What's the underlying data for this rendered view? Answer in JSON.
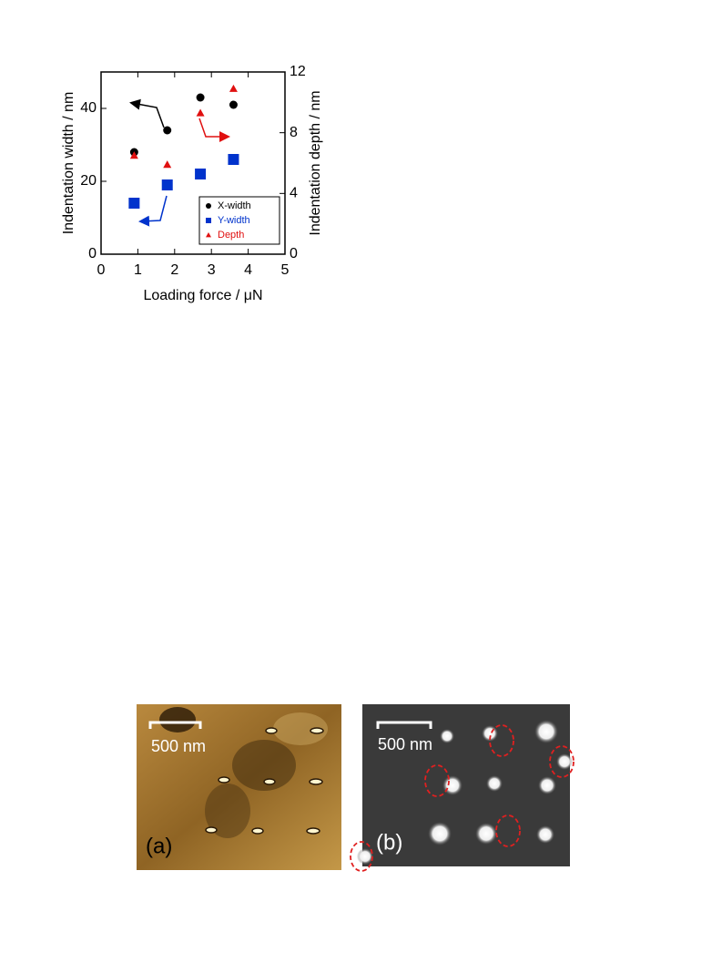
{
  "chart_data": {
    "type": "scatter",
    "xlabel": "Loading force / μN",
    "ylabel": "Indentation width / nm",
    "y2label": "Indentation depth / nm",
    "x": [
      0.9,
      1.8,
      2.7,
      3.6
    ],
    "xlim": [
      0,
      5
    ],
    "xticks": [
      0,
      1,
      2,
      3,
      4,
      5
    ],
    "ylim": [
      0,
      50
    ],
    "yticks": [
      0,
      20,
      40
    ],
    "y2lim": [
      0,
      12
    ],
    "y2ticks": [
      0,
      4,
      8,
      12
    ],
    "legend": "lower right",
    "series": [
      {
        "name": "X-width",
        "color": "#000000",
        "marker": "circle",
        "values": [
          28,
          34,
          43,
          41
        ]
      },
      {
        "name": "Y-width",
        "color": "#0033cc",
        "marker": "square",
        "values": [
          14,
          19,
          22,
          26
        ]
      },
      {
        "name": "Depth",
        "color": "#e01010",
        "marker": "triangle",
        "axis": "y2",
        "values": [
          6.5,
          5.9,
          9.3,
          10.9
        ]
      }
    ]
  },
  "figure": {
    "panels": [
      {
        "label": "(a)",
        "scale_bar": "500 nm"
      },
      {
        "label": "(b)",
        "scale_bar": "500 nm"
      }
    ]
  }
}
